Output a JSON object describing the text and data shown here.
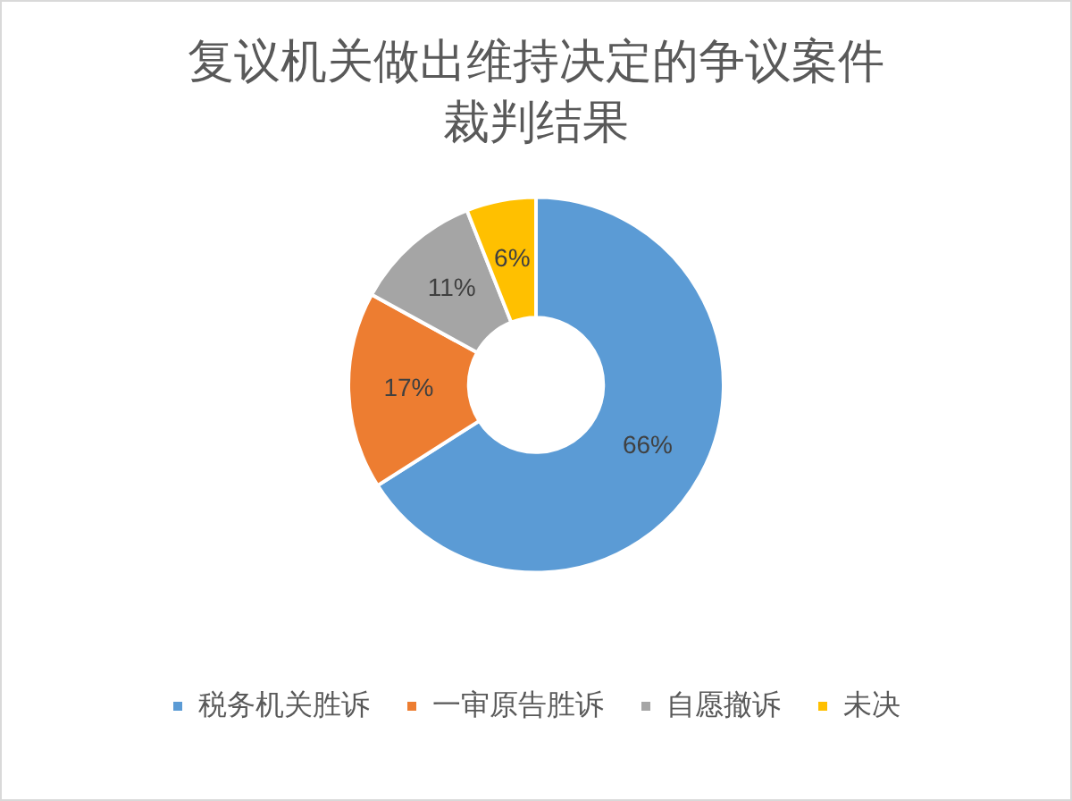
{
  "chart_data": {
    "type": "donut",
    "title": "复议机关做出维持决定的争议案件裁判结果",
    "categories": [
      "税务机关胜诉",
      "一审原告胜诉",
      "自愿撤诉",
      "未决"
    ],
    "values": [
      66,
      17,
      11,
      6
    ],
    "colors": [
      "#5b9bd5",
      "#ed7d31",
      "#a5a5a5",
      "#ffc000"
    ],
    "value_labels": [
      "66%",
      "17%",
      "11%",
      "6%"
    ],
    "legend": "bottom"
  }
}
